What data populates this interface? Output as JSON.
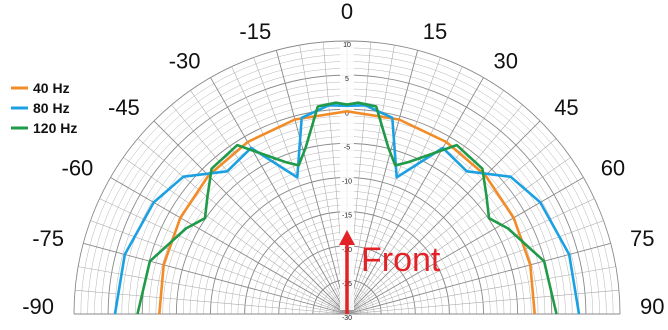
{
  "chart_data": {
    "type": "polar",
    "angle_unit": "degrees",
    "angle_ticks": [
      -90,
      -75,
      -60,
      -45,
      -30,
      -15,
      0,
      15,
      30,
      45,
      60,
      75,
      90
    ],
    "angle_tick_labels": [
      "-90",
      "-75",
      "-60",
      "-45",
      "-30",
      "-15",
      "0",
      "15",
      "30",
      "45",
      "60",
      "75",
      "90"
    ],
    "radial_ticks": [
      10,
      5,
      0,
      -5,
      -10,
      -15,
      -20,
      -25,
      -30
    ],
    "radial_tick_labels": [
      "10",
      "5",
      "0",
      "-5",
      "-10",
      "-15",
      "-20",
      "-25",
      "-30"
    ],
    "rlim": [
      -30,
      10
    ],
    "grid": true,
    "legend_position": "top-left",
    "annotation": "Front",
    "series": [
      {
        "name": "40 Hz",
        "color": "#f28c28",
        "points": [
          [
            -90,
            -2.5
          ],
          [
            -75,
            -2.2
          ],
          [
            -60,
            -1.8
          ],
          [
            -45,
            -1.3
          ],
          [
            -30,
            -0.9
          ],
          [
            -15,
            -0.5
          ],
          [
            0,
            -0.3
          ],
          [
            15,
            -0.5
          ],
          [
            30,
            -0.9
          ],
          [
            45,
            -1.3
          ],
          [
            60,
            -1.8
          ],
          [
            75,
            -2.2
          ],
          [
            90,
            -2.5
          ]
        ]
      },
      {
        "name": "80 Hz",
        "color": "#1ba1e2",
        "points": [
          [
            -90,
            4.0
          ],
          [
            -75,
            3.7
          ],
          [
            -60,
            2.7
          ],
          [
            -50,
            1.3
          ],
          [
            -40,
            -2.7
          ],
          [
            -30,
            -1.9
          ],
          [
            -20,
            -8.7
          ],
          [
            -13,
            -0.5
          ],
          [
            -5,
            0.7
          ],
          [
            0,
            0.5
          ],
          [
            5,
            0.7
          ],
          [
            13,
            -0.5
          ],
          [
            20,
            -8.7
          ],
          [
            30,
            -1.9
          ],
          [
            40,
            -2.7
          ],
          [
            50,
            1.3
          ],
          [
            60,
            2.7
          ],
          [
            75,
            3.7
          ],
          [
            90,
            4.0
          ]
        ]
      },
      {
        "name": "120 Hz",
        "color": "#1f9a48",
        "points": [
          [
            -90,
            0.7
          ],
          [
            -75,
            -0.1
          ],
          [
            -62,
            -3.3
          ],
          [
            -56,
            -4.9
          ],
          [
            -50,
            -3.3
          ],
          [
            -43,
            -0.9
          ],
          [
            -33,
            -0.5
          ],
          [
            -22,
            -6.0
          ],
          [
            -18,
            -7.1
          ],
          [
            -14,
            -4.9
          ],
          [
            -8,
            0.7
          ],
          [
            -3,
            1.0
          ],
          [
            0,
            0.7
          ],
          [
            3,
            1.0
          ],
          [
            8,
            0.7
          ],
          [
            14,
            -4.9
          ],
          [
            18,
            -7.1
          ],
          [
            22,
            -6.0
          ],
          [
            33,
            -0.5
          ],
          [
            43,
            -0.9
          ],
          [
            50,
            -3.3
          ],
          [
            56,
            -4.9
          ],
          [
            62,
            -3.3
          ],
          [
            75,
            -0.1
          ],
          [
            90,
            0.7
          ]
        ]
      }
    ]
  }
}
